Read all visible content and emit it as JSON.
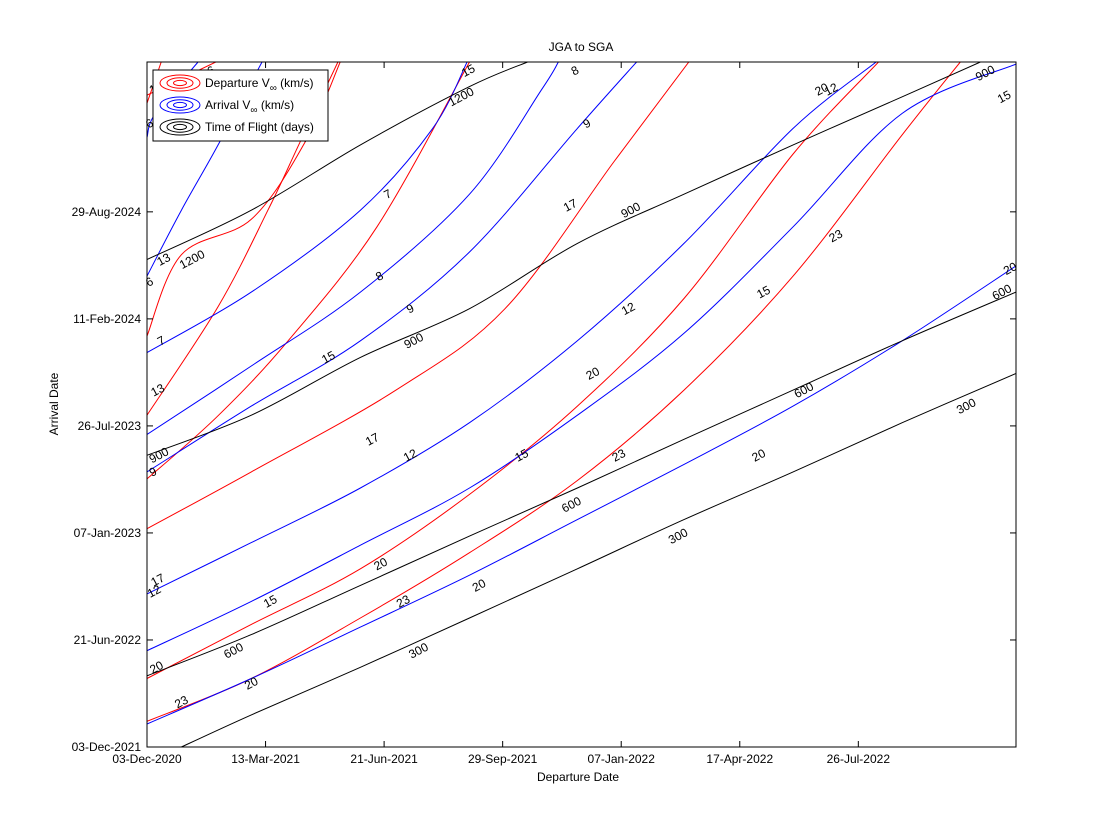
{
  "chart_data": {
    "type": "contour",
    "title": "JGA to SGA",
    "xlabel": "Departure Date",
    "ylabel": "Arrival Date",
    "xlim": [
      "03-Dec-2020",
      "06-Dec-2022"
    ],
    "ylim": [
      "03-Dec-2021",
      "05-Jun-2025"
    ],
    "grid": false,
    "legend_position": "top-left",
    "x_ticks": [
      "03-Dec-2020",
      "13-Mar-2021",
      "21-Jun-2021",
      "29-Sep-2021",
      "07-Jan-2022",
      "17-Apr-2022",
      "26-Jul-2022"
    ],
    "y_ticks": [
      "03-Dec-2021",
      "21-Jun-2022",
      "07-Jan-2023",
      "26-Jul-2023",
      "11-Feb-2024",
      "29-Aug-2024"
    ],
    "legend": [
      {
        "label_main": "Departure V",
        "label_sub": "∞",
        "label_rest": " (km/s)",
        "color": "#ff0000"
      },
      {
        "label_main": "Arrival V",
        "label_sub": "∞",
        "label_rest": " (km/s)",
        "color": "#0000ff"
      },
      {
        "label_main": "Time of Flight (days)",
        "label_sub": "",
        "label_rest": "",
        "color": "#000000"
      }
    ],
    "colors": {
      "departure": "#ff0000",
      "arrival": "#0000ff",
      "tof": "#000000"
    },
    "series": [
      {
        "group": "departure",
        "level": "6",
        "points": [
          [
            "03-Dec-2020",
            "04-Apr-2025"
          ],
          [
            "30-Jan-2021",
            "05-Jun-2025"
          ]
        ],
        "labels": [
          [
            "26-Jan-2021",
            "20-May-2025"
          ]
        ]
      },
      {
        "group": "departure",
        "level": "1",
        "points": [
          [
            "03-Dec-2020",
            "20-Mar-2025"
          ],
          [
            "15-Dec-2020",
            "05-Jun-2025"
          ]
        ],
        "labels": [
          [
            "08-Dec-2020",
            "15-Apr-2025"
          ]
        ]
      },
      {
        "group": "departure",
        "level": "13",
        "points": [
          [
            "03-Dec-2020",
            "10-Jan-2024"
          ],
          [
            "01-Jan-2021",
            "10-Jun-2024"
          ],
          [
            "01-Mar-2021",
            "15-Aug-2024"
          ],
          [
            "15-Apr-2021",
            "05-Jan-2025"
          ],
          [
            "15-May-2021",
            "05-Jun-2025"
          ]
        ],
        "labels": [
          [
            "17-Dec-2020",
            "01-Jun-2024"
          ],
          [
            "18-Apr-2021",
            "18-Jan-2025"
          ]
        ]
      },
      {
        "group": "departure",
        "level": "13",
        "points": [
          [
            "03-Dec-2020",
            "15-Aug-2023"
          ],
          [
            "01-Feb-2021",
            "05-Mar-2024"
          ],
          [
            "15-Mar-2021",
            "01-Sep-2024"
          ],
          [
            "10-Apr-2021",
            "01-Jan-2025"
          ],
          [
            "13-May-2021",
            "05-Jun-2025"
          ]
        ],
        "labels": [
          [
            "12-Dec-2020",
            "01-Oct-2023"
          ]
        ]
      },
      {
        "group": "departure",
        "level": "15",
        "points": [
          [
            "03-Dec-2020",
            "18-Apr-2023"
          ],
          [
            "01-Feb-2021",
            "14-Aug-2023"
          ],
          [
            "01-Apr-2021",
            "01-Jan-2024"
          ],
          [
            "15-Jun-2021",
            "01-Aug-2024"
          ],
          [
            "01-Sep-2021",
            "05-Jun-2025"
          ]
        ],
        "labels": [
          [
            "05-May-2021",
            "01-Dec-2023"
          ],
          [
            "31-Aug-2021",
            "20-May-2025"
          ]
        ]
      },
      {
        "group": "departure",
        "level": "17",
        "points": [
          [
            "03-Dec-2020",
            "15-Jan-2023"
          ],
          [
            "01-Mar-2021",
            "01-May-2023"
          ],
          [
            "01-Jul-2021",
            "01-Oct-2023"
          ],
          [
            "01-Oct-2021",
            "01-Mar-2024"
          ],
          [
            "01-Jan-2022",
            "01-Dec-2024"
          ],
          [
            "05-Mar-2022",
            "05-Jun-2025"
          ]
        ],
        "labels": [
          [
            "12-Dec-2020",
            "11-Oct-2022"
          ],
          [
            "11-Jun-2021",
            "01-Jul-2023"
          ],
          [
            "25-Nov-2021",
            "10-Sep-2024"
          ]
        ]
      },
      {
        "group": "departure",
        "level": "20",
        "points": [
          [
            "03-Dec-2020",
            "10-Apr-2022"
          ],
          [
            "01-Mar-2021",
            "20-Jul-2022"
          ],
          [
            "01-Jun-2021",
            "01-Nov-2022"
          ],
          [
            "01-Sep-2021",
            "20-Mar-2023"
          ],
          [
            "01-Dec-2021",
            "01-Sep-2023"
          ],
          [
            "01-Mar-2022",
            "20-Mar-2024"
          ],
          [
            "01-Jun-2022",
            "15-Dec-2024"
          ],
          [
            "12-Aug-2022",
            "05-Jun-2025"
          ]
        ],
        "labels": [
          [
            "11-Dec-2020",
            "01-May-2022"
          ],
          [
            "18-Jun-2021",
            "10-Nov-2022"
          ],
          [
            "14-Dec-2021",
            "01-Nov-2023"
          ],
          [
            "25-Jun-2022",
            "15-Apr-2025"
          ]
        ]
      },
      {
        "group": "departure",
        "level": "23",
        "points": [
          [
            "03-Dec-2020",
            "20-Jan-2022"
          ],
          [
            "01-Mar-2021",
            "10-Apr-2022"
          ],
          [
            "01-Jun-2021",
            "01-Aug-2022"
          ],
          [
            "01-Sep-2021",
            "01-Dec-2022"
          ],
          [
            "01-Dec-2021",
            "15-Apr-2023"
          ],
          [
            "01-Mar-2022",
            "01-Oct-2023"
          ],
          [
            "01-Jun-2022",
            "01-May-2024"
          ],
          [
            "01-Sep-2022",
            "20-Jan-2025"
          ],
          [
            "20-Oct-2022",
            "05-Jun-2025"
          ]
        ],
        "labels": [
          [
            "01-Jan-2021",
            "25-Feb-2022"
          ],
          [
            "07-Jul-2021",
            "01-Sep-2022"
          ],
          [
            "05-Jan-2022",
            "01-Jun-2023"
          ],
          [
            "07-Jul-2022",
            "15-Jul-2024"
          ]
        ]
      },
      {
        "group": "arrival",
        "level": "6",
        "points": [
          [
            "03-Dec-2020",
            "01-May-2024"
          ],
          [
            "01-Jan-2021",
            "01-Sep-2024"
          ],
          [
            "01-Feb-2021",
            "01-Jan-2025"
          ],
          [
            "10-Mar-2021",
            "05-Jun-2025"
          ]
        ],
        "labels": [
          [
            "05-Dec-2020",
            "20-Apr-2024"
          ]
        ]
      },
      {
        "group": "arrival",
        "level": "6",
        "points": [
          [
            "03-Dec-2020",
            "15-Jan-2025"
          ],
          [
            "10-Dec-2020",
            "01-Mar-2025"
          ],
          [
            "15-Jan-2021",
            "05-Jun-2025"
          ]
        ],
        "labels": [
          [
            "05-Dec-2020",
            "10-Feb-2025"
          ]
        ]
      },
      {
        "group": "arrival",
        "level": "7",
        "points": [
          [
            "03-Dec-2020",
            "10-Dec-2023"
          ],
          [
            "01-Mar-2021",
            "01-Apr-2024"
          ],
          [
            "01-Jun-2021",
            "01-Sep-2024"
          ],
          [
            "01-Aug-2021",
            "01-Feb-2025"
          ],
          [
            "30-Aug-2021",
            "05-Jun-2025"
          ]
        ],
        "labels": [
          [
            "15-Dec-2020",
            "01-Jan-2024"
          ],
          [
            "24-Jun-2021",
            "01-Oct-2024"
          ]
        ]
      },
      {
        "group": "arrival",
        "level": "8",
        "points": [
          [
            "03-Dec-2020",
            "10-Jul-2023"
          ],
          [
            "01-Mar-2021",
            "15-Nov-2023"
          ],
          [
            "01-Jun-2021",
            "01-Apr-2024"
          ],
          [
            "01-Sep-2021",
            "01-Oct-2024"
          ],
          [
            "01-Nov-2021",
            "15-Apr-2025"
          ],
          [
            "15-Nov-2021",
            "05-Jun-2025"
          ]
        ],
        "labels": [
          [
            "17-Jun-2021",
            "01-May-2024"
          ],
          [
            "29-Nov-2021",
            "20-May-2025"
          ]
        ]
      },
      {
        "group": "arrival",
        "level": "9",
        "points": [
          [
            "03-Dec-2020",
            "01-May-2023"
          ],
          [
            "01-Mar-2021",
            "01-Sep-2023"
          ],
          [
            "01-Jun-2021",
            "01-Jan-2024"
          ],
          [
            "01-Sep-2021",
            "15-Jun-2024"
          ],
          [
            "01-Dec-2021",
            "01-Feb-2025"
          ],
          [
            "20-Jan-2022",
            "05-Jun-2025"
          ]
        ],
        "labels": [
          [
            "08-Dec-2020",
            "01-May-2023"
          ],
          [
            "13-Jul-2021",
            "01-Mar-2024"
          ],
          [
            "09-Dec-2021",
            "10-Feb-2025"
          ]
        ]
      },
      {
        "group": "arrival",
        "level": "12",
        "points": [
          [
            "03-Dec-2020",
            "15-Sep-2022"
          ],
          [
            "01-Mar-2021",
            "20-Dec-2022"
          ],
          [
            "01-Jun-2021",
            "01-Apr-2023"
          ],
          [
            "01-Sep-2021",
            "01-Aug-2023"
          ],
          [
            "01-Dec-2021",
            "01-Jan-2024"
          ],
          [
            "01-Mar-2022",
            "01-Jul-2024"
          ],
          [
            "01-Jun-2022",
            "01-Feb-2025"
          ],
          [
            "10-Aug-2022",
            "05-Jun-2025"
          ]
        ],
        "labels": [
          [
            "09-Dec-2020",
            "20-Sep-2022"
          ],
          [
            "13-Jul-2021",
            "01-Jun-2023"
          ],
          [
            "13-Jan-2022",
            "01-Mar-2024"
          ],
          [
            "03-Jul-2022",
            "15-Apr-2025"
          ]
        ]
      },
      {
        "group": "arrival",
        "level": "15",
        "points": [
          [
            "03-Dec-2020",
            "01-Jun-2022"
          ],
          [
            "01-Mar-2021",
            "01-Sep-2022"
          ],
          [
            "01-Jun-2021",
            "15-Dec-2022"
          ],
          [
            "01-Sep-2021",
            "01-Apr-2023"
          ],
          [
            "01-Dec-2021",
            "15-Aug-2023"
          ],
          [
            "01-Mar-2022",
            "15-Jan-2024"
          ],
          [
            "01-Jun-2022",
            "01-Aug-2024"
          ],
          [
            "01-Sep-2022",
            "01-Mar-2025"
          ],
          [
            "06-Dec-2022",
            "01-Jun-2025"
          ]
        ],
        "labels": [
          [
            "17-Mar-2021",
            "01-Sep-2022"
          ],
          [
            "15-Oct-2021",
            "01-Jun-2023"
          ],
          [
            "07-May-2022",
            "01-Apr-2024"
          ],
          [
            "26-Nov-2022",
            "01-Apr-2025"
          ]
        ]
      },
      {
        "group": "arrival",
        "level": "20",
        "points": [
          [
            "03-Dec-2020",
            "15-Jan-2022"
          ],
          [
            "01-Mar-2021",
            "10-Apr-2022"
          ],
          [
            "01-Jun-2021",
            "15-Jul-2022"
          ],
          [
            "01-Sep-2021",
            "20-Oct-2022"
          ],
          [
            "01-Dec-2021",
            "01-Feb-2023"
          ],
          [
            "01-Mar-2022",
            "15-May-2023"
          ],
          [
            "01-Jun-2022",
            "01-Sep-2023"
          ],
          [
            "01-Sep-2022",
            "01-Jan-2024"
          ],
          [
            "06-Dec-2022",
            "20-May-2024"
          ]
        ],
        "labels": [
          [
            "01-Mar-2021",
            "01-Apr-2022"
          ],
          [
            "09-Sep-2021",
            "01-Oct-2022"
          ],
          [
            "03-May-2022",
            "01-Jun-2023"
          ],
          [
            "01-Dec-2022",
            "15-May-2024"
          ]
        ]
      },
      {
        "group": "tof",
        "level": "1200",
        "points": [
          [
            "03-Dec-2020",
            "01-Jun-2024"
          ],
          [
            "01-Mar-2021",
            "01-Sep-2024"
          ],
          [
            "01-Jun-2021",
            "01-Jan-2025"
          ],
          [
            "01-Sep-2021",
            "20-Apr-2025"
          ],
          [
            "20-Oct-2021",
            "05-Jun-2025"
          ]
        ],
        "labels": [
          [
            "10-Jan-2021",
            "01-Jun-2024"
          ],
          [
            "25-Aug-2021",
            "01-Apr-2025"
          ]
        ]
      },
      {
        "group": "tof",
        "level": "900",
        "points": [
          [
            "03-Dec-2020",
            "01-Jun-2023"
          ],
          [
            "01-Mar-2021",
            "15-Aug-2023"
          ],
          [
            "01-Jun-2021",
            "01-Dec-2023"
          ],
          [
            "01-Sep-2021",
            "01-Mar-2024"
          ],
          [
            "01-Dec-2021",
            "01-Jul-2024"
          ],
          [
            "01-Mar-2022",
            "01-Oct-2024"
          ],
          [
            "01-Jun-2022",
            "01-Jan-2025"
          ],
          [
            "01-Sep-2022",
            "01-Apr-2025"
          ],
          [
            "06-Nov-2022",
            "05-Jun-2025"
          ]
        ],
        "labels": [
          [
            "13-Dec-2020",
            "01-Jun-2023"
          ],
          [
            "16-Jul-2021",
            "01-Jan-2024"
          ],
          [
            "15-Jan-2022",
            "01-Sep-2024"
          ],
          [
            "10-Nov-2022",
            "15-May-2025"
          ]
        ]
      },
      {
        "group": "tof",
        "level": "600",
        "points": [
          [
            "03-Dec-2020",
            "15-Apr-2022"
          ],
          [
            "01-Mar-2021",
            "01-Jul-2022"
          ],
          [
            "01-Jun-2021",
            "01-Oct-2022"
          ],
          [
            "01-Sep-2021",
            "01-Jan-2023"
          ],
          [
            "01-Dec-2021",
            "01-Apr-2023"
          ],
          [
            "01-Mar-2022",
            "01-Jul-2023"
          ],
          [
            "01-Jun-2022",
            "01-Oct-2023"
          ],
          [
            "01-Sep-2022",
            "01-Jan-2024"
          ],
          [
            "06-Dec-2022",
            "01-Apr-2024"
          ]
        ],
        "labels": [
          [
            "14-Feb-2021",
            "01-Jun-2022"
          ],
          [
            "26-Nov-2021",
            "01-Mar-2023"
          ],
          [
            "10-Jun-2022",
            "01-Oct-2023"
          ],
          [
            "24-Nov-2022",
            "01-Apr-2024"
          ]
        ]
      },
      {
        "group": "tof",
        "level": "300",
        "points": [
          [
            "01-Jan-2021",
            "03-Dec-2021"
          ],
          [
            "01-Mar-2021",
            "01-Feb-2022"
          ],
          [
            "01-Jun-2021",
            "01-May-2022"
          ],
          [
            "01-Sep-2021",
            "01-Aug-2022"
          ],
          [
            "01-Dec-2021",
            "01-Nov-2022"
          ],
          [
            "01-Mar-2022",
            "01-Feb-2023"
          ],
          [
            "01-Jun-2022",
            "01-May-2023"
          ],
          [
            "01-Sep-2022",
            "01-Aug-2023"
          ],
          [
            "06-Dec-2022",
            "01-Nov-2023"
          ]
        ],
        "labels": [
          [
            "20-Jul-2021",
            "01-Jun-2022"
          ],
          [
            "24-Feb-2022",
            "01-Jan-2023"
          ],
          [
            "25-Oct-2022",
            "01-Sep-2023"
          ]
        ]
      }
    ]
  }
}
